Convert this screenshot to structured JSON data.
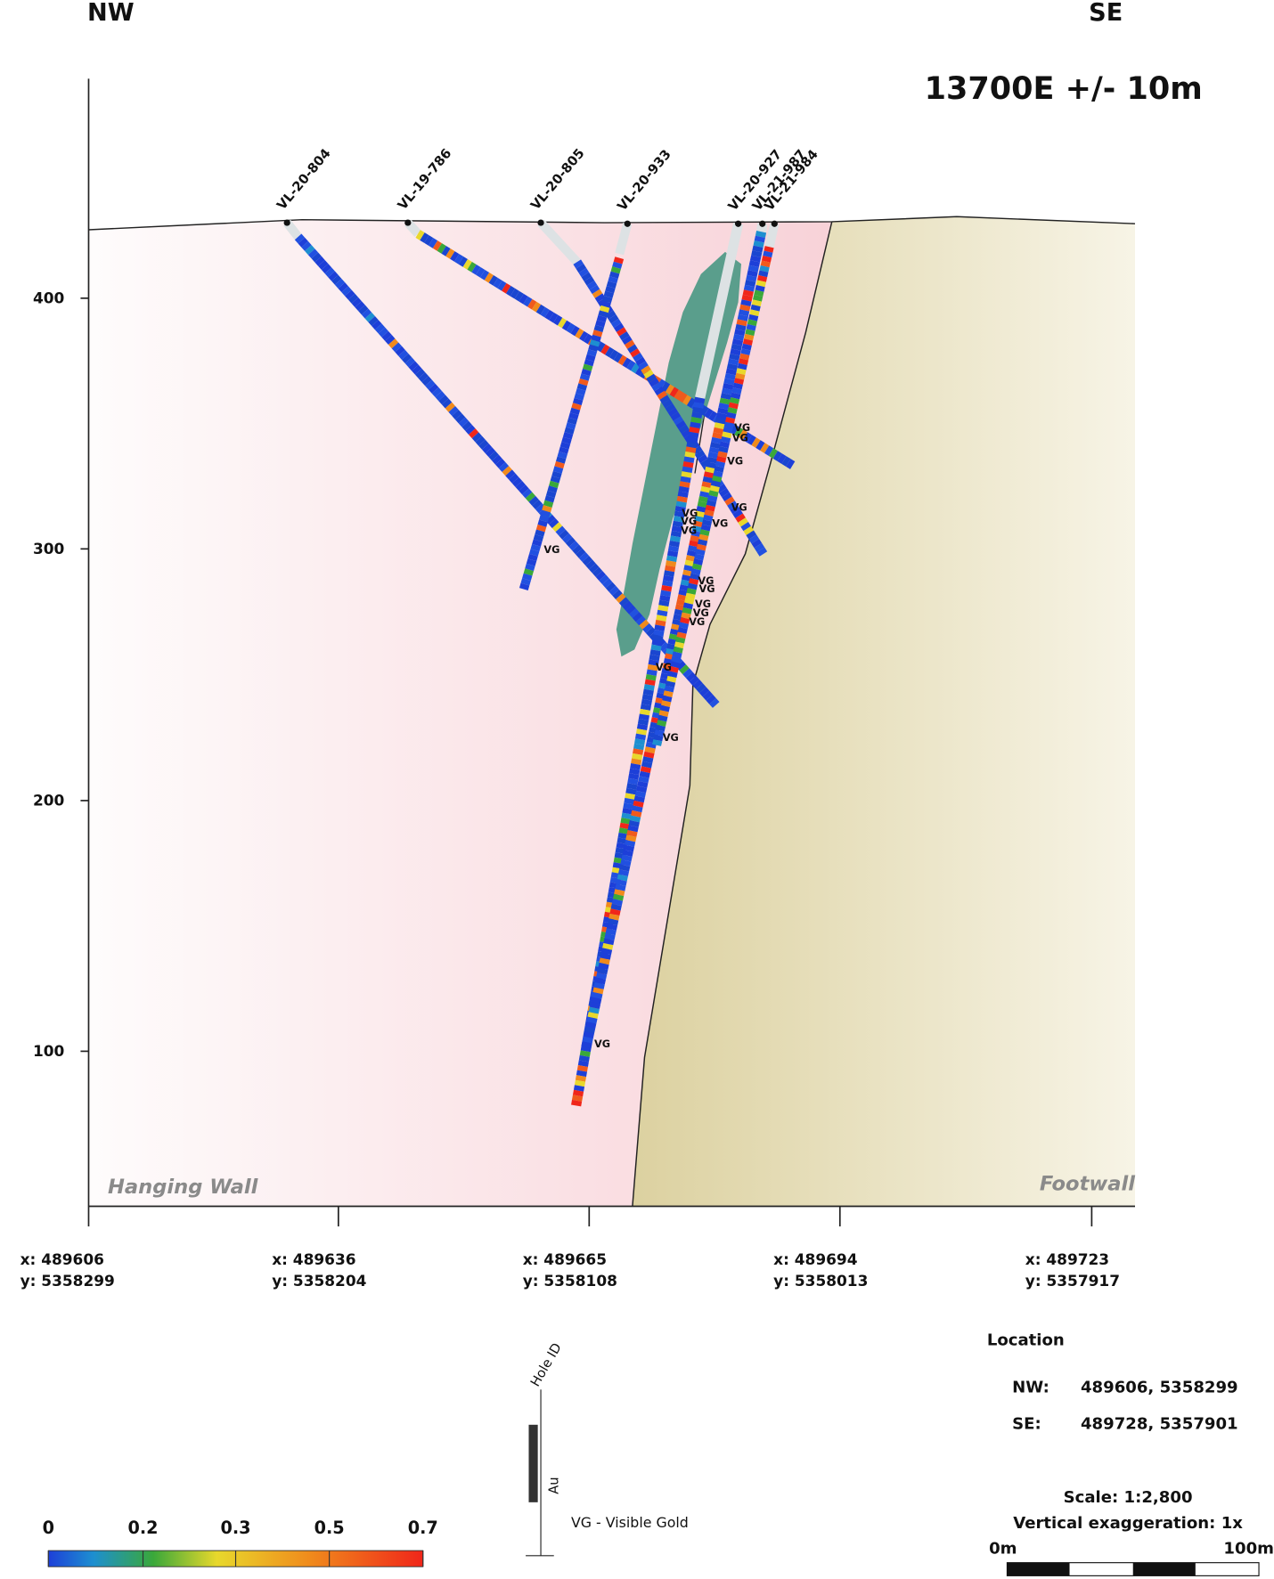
{
  "header": {
    "nw": "NW",
    "se": "SE",
    "section": "13700E +/- 10m"
  },
  "elevation_labels": [
    400,
    300,
    200,
    100
  ],
  "drill_holes": [
    {
      "id": "VL-20-804"
    },
    {
      "id": "VL-19-786"
    },
    {
      "id": "VL-20-805"
    },
    {
      "id": "VL-20-933"
    },
    {
      "id": "VL-20-927"
    },
    {
      "id": "VL-21-987"
    },
    {
      "id": "VL-21-984"
    }
  ],
  "vg_label": "VG",
  "zones": {
    "hanging_wall": "Hanging Wall",
    "footwall": "Footwall"
  },
  "coordinates": [
    {
      "x": "x: 489606",
      "y": "y: 5358299"
    },
    {
      "x": "x: 489636",
      "y": "y: 5358204"
    },
    {
      "x": "x: 489665",
      "y": "y: 5358108"
    },
    {
      "x": "x: 489694",
      "y": "y: 5358013"
    },
    {
      "x": "x: 489723",
      "y": "y: 5357917"
    }
  ],
  "legend": {
    "hole_id": "Hole ID",
    "au": "Au",
    "vg": "VG - Visible Gold"
  },
  "location": {
    "title": "Location",
    "rows": [
      {
        "label": "NW:",
        "value": "489606, 5358299"
      },
      {
        "label": "SE:",
        "value": "489728, 5357901"
      }
    ]
  },
  "scale": {
    "text": "Scale: 1:2,800",
    "exaggeration": "Vertical exaggeration: 1x",
    "start": "0m",
    "end": "100m"
  },
  "color_scale": {
    "ticks": [
      0,
      0.2,
      0.3,
      0.5,
      0.7
    ]
  }
}
